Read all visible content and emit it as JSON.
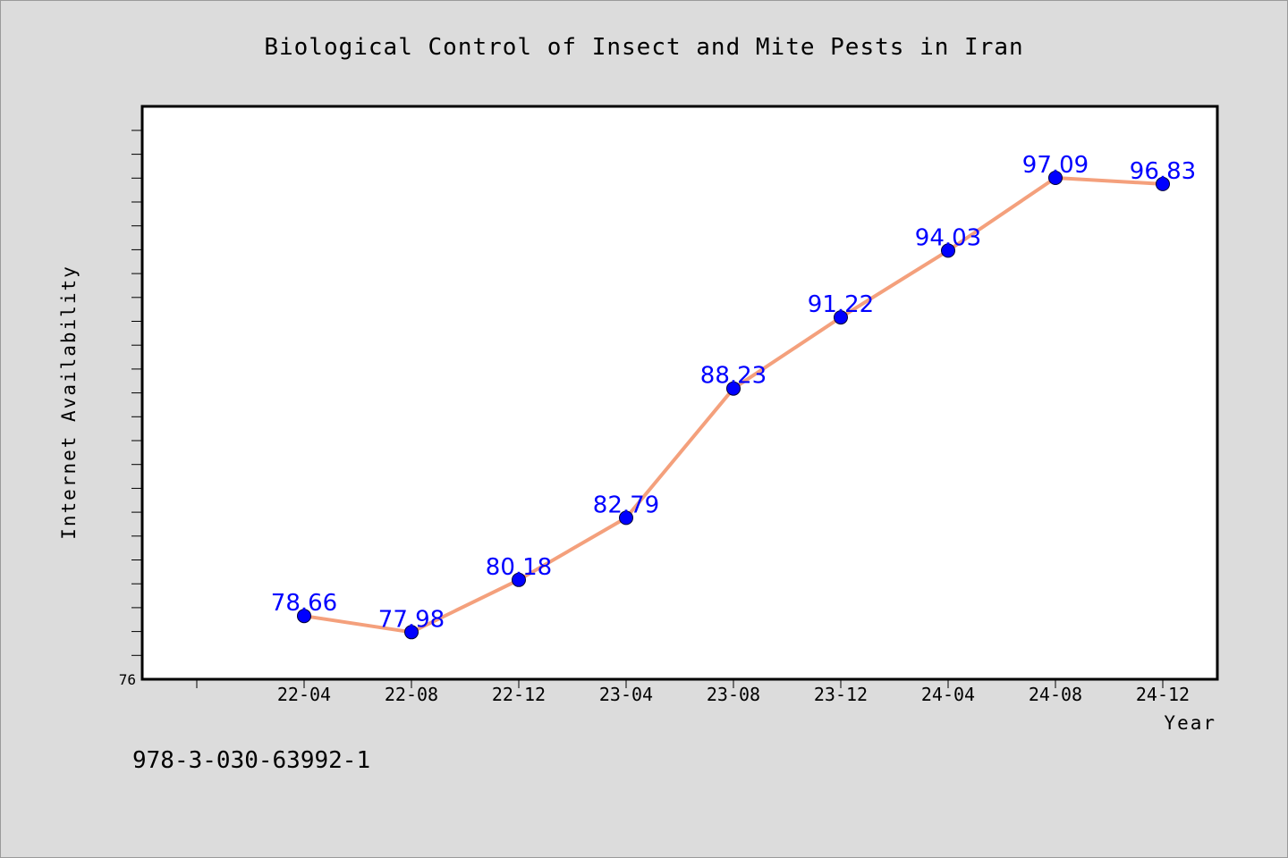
{
  "footer": {
    "code": "978-3-030-63992-1"
  },
  "colors": {
    "line": "#f4a07c",
    "marker": "#0000ff",
    "label": "#0000ff",
    "background": "#dcdcdc",
    "plot_bg": "#ffffff"
  },
  "chart_data": {
    "type": "line",
    "title": "Biological Control of Insect and Mite Pests in Iran",
    "xlabel": "Year",
    "ylabel": "Internet Availability",
    "categories": [
      "22-04",
      "22-08",
      "22-12",
      "23-04",
      "23-08",
      "23-12",
      "24-04",
      "24-08",
      "24-12"
    ],
    "series": [
      {
        "values": [
          78.66,
          77.98,
          80.18,
          82.79,
          88.23,
          91.22,
          94.03,
          97.09,
          96.83
        ]
      }
    ],
    "data_labels": [
      "78.66",
      "77.98",
      "80.18",
      "82.79",
      "88.23",
      "91.22",
      "94.03",
      "97.09",
      "96.83"
    ],
    "ylim": [
      76,
      100
    ],
    "ytick_label": "76",
    "grid": false,
    "legend": "none"
  }
}
